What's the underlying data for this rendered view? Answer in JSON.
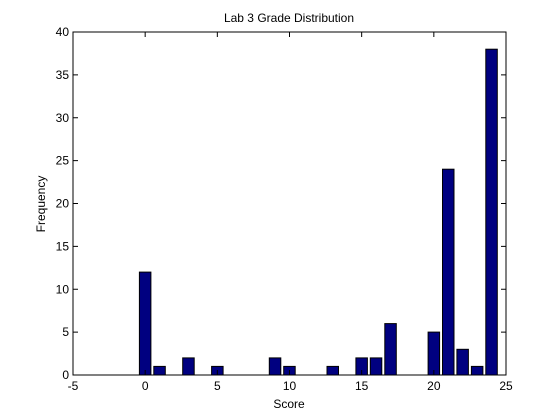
{
  "chart_data": {
    "type": "bar",
    "title": "Lab 3 Grade Distribution",
    "xlabel": "Score",
    "ylabel": "Frequency",
    "xlim": [
      -5,
      25
    ],
    "ylim": [
      0,
      40
    ],
    "xticks": [
      -5,
      0,
      5,
      10,
      15,
      20,
      25
    ],
    "yticks": [
      0,
      5,
      10,
      15,
      20,
      25,
      30,
      35,
      40
    ],
    "bar_color": "#000080",
    "grid": false,
    "x": [
      0,
      1,
      3,
      5,
      9,
      10,
      13,
      15,
      16,
      17,
      20,
      21,
      22,
      23,
      24
    ],
    "values": [
      12,
      1,
      2,
      1,
      2,
      1,
      1,
      2,
      2,
      6,
      5,
      24,
      3,
      1,
      38
    ]
  }
}
